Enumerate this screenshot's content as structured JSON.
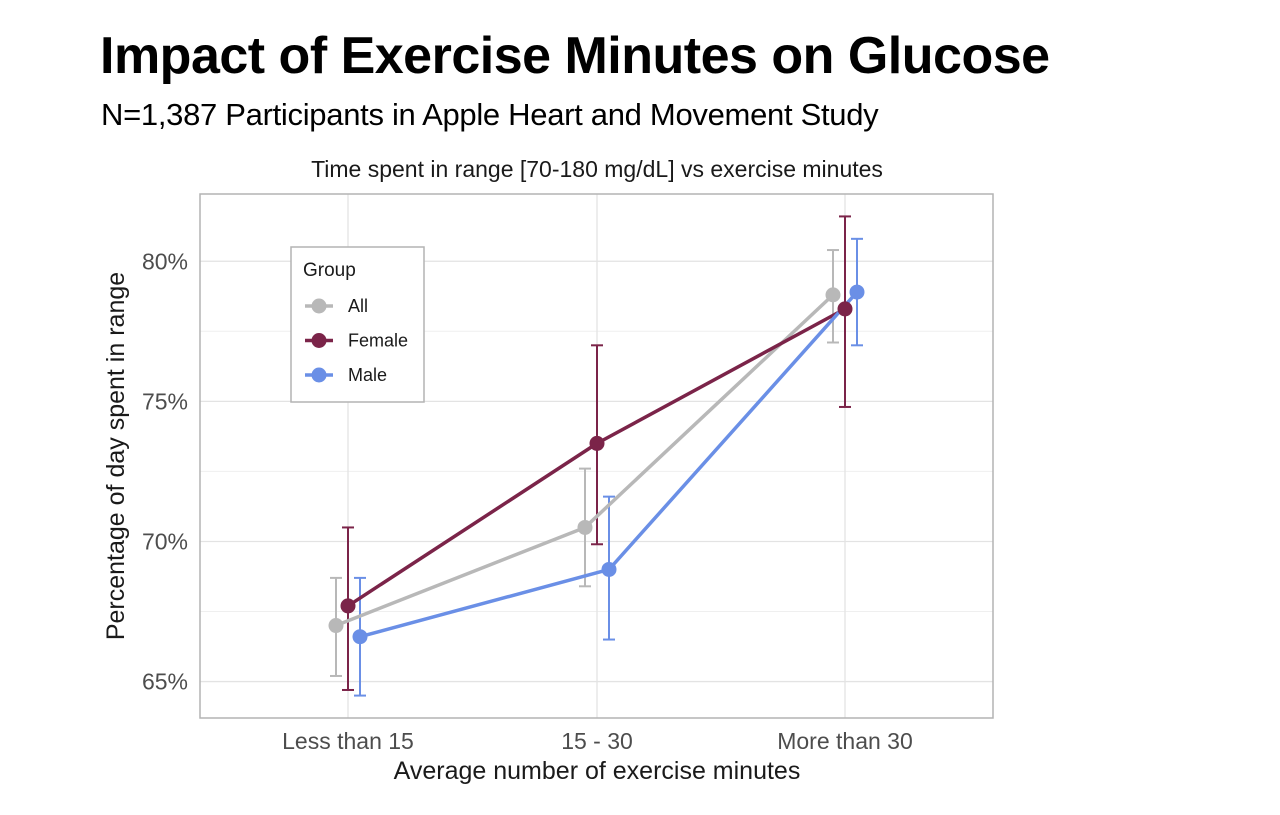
{
  "header": {
    "title": "Impact of Exercise Minutes on Glucose",
    "subtitle": "N=1,387 Participants in Apple Heart and Movement Study"
  },
  "chart_data": {
    "type": "line",
    "title": "Time spent in range [70-180 mg/dL] vs exercise minutes",
    "xlabel": "Average number of exercise minutes",
    "ylabel": "Percentage of day spent in range",
    "categories": [
      "Less than 15",
      "15 - 30",
      "More than 30"
    ],
    "ylim": [
      63.7,
      82.4
    ],
    "yticks": [
      65,
      70,
      75,
      80
    ],
    "ytick_labels": [
      "65%",
      "70%",
      "75%",
      "80%"
    ],
    "grid": true,
    "legend": {
      "title": "Group",
      "position": "top-left"
    },
    "series": [
      {
        "name": "All",
        "color": "#b8b8b8",
        "values": [
          67.0,
          70.5,
          78.8
        ],
        "lower": [
          65.2,
          68.4,
          77.1
        ],
        "upper": [
          68.7,
          72.6,
          80.4
        ]
      },
      {
        "name": "Female",
        "color": "#7b2449",
        "values": [
          67.7,
          73.5,
          78.3
        ],
        "lower": [
          64.7,
          69.9,
          74.8
        ],
        "upper": [
          70.5,
          77.0,
          81.6
        ]
      },
      {
        "name": "Male",
        "color": "#6a8fe6",
        "values": [
          66.6,
          69.0,
          78.9
        ],
        "lower": [
          64.5,
          66.5,
          77.0
        ],
        "upper": [
          68.7,
          71.6,
          80.8
        ]
      }
    ]
  }
}
